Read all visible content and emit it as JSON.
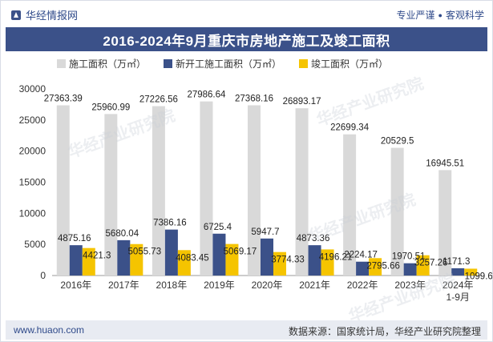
{
  "brand": {
    "name": "华经情报网",
    "slogan_left": "专业严谨",
    "slogan_right": "客观科学"
  },
  "title": "2016-2024年9月重庆市房地产施工及竣工面积",
  "footer": {
    "url": "www.huaon.com",
    "source": "数据来源：国家统计局，华经产业研究院整理"
  },
  "watermark": "华经产业研究院",
  "colors": {
    "construction": "#d9d9d9",
    "new_start": "#3b5189",
    "completed": "#f5c400",
    "header_bg": "#3b5189",
    "footer_bg": "#e8ebf2"
  },
  "chart_data": {
    "type": "bar",
    "categories": [
      "2016年",
      "2017年",
      "2018年",
      "2019年",
      "2020年",
      "2021年",
      "2022年",
      "2023年",
      "2024年\n1-9月"
    ],
    "series": [
      {
        "name": "施工面积（万㎡）",
        "color": "#d9d9d9",
        "values": [
          27363.39,
          25960.99,
          27226.56,
          27986.64,
          27368.16,
          26893.17,
          22699.34,
          20529.5,
          16945.51
        ]
      },
      {
        "name": "新开工施工面积（万㎡）",
        "color": "#3b5189",
        "values": [
          4875.16,
          5680.04,
          7386.16,
          6725.4,
          5947.7,
          4873.36,
          2224.17,
          1970.51,
          1171.3
        ]
      },
      {
        "name": "竣工面积（万㎡）",
        "color": "#f5c400",
        "values": [
          4421.3,
          5055.73,
          4083.45,
          5069.17,
          3774.33,
          4196.21,
          2795.66,
          3257.26,
          1099.6
        ]
      }
    ],
    "value_labels": [
      [
        "27363.39",
        "25960.99",
        "27226.56",
        "27986.64",
        "27368.16",
        "26893.17",
        "22699.34",
        "20529.5",
        "16945.51"
      ],
      [
        "4875.16",
        "5680.04",
        "7386.16",
        "6725.4",
        "5947.7",
        "4873.36",
        "2224.17",
        "1970.51",
        "1171.3"
      ],
      [
        "4421.3",
        "5055.73",
        "4083.45",
        "5069.17",
        "3774.33",
        "4196.21",
        "2795.66",
        "3257.26",
        "1099.6"
      ]
    ],
    "ylim": [
      0,
      30000
    ],
    "yticks": [
      0,
      5000,
      10000,
      15000,
      20000,
      25000,
      30000
    ],
    "grid": false,
    "legend_position": "top"
  }
}
